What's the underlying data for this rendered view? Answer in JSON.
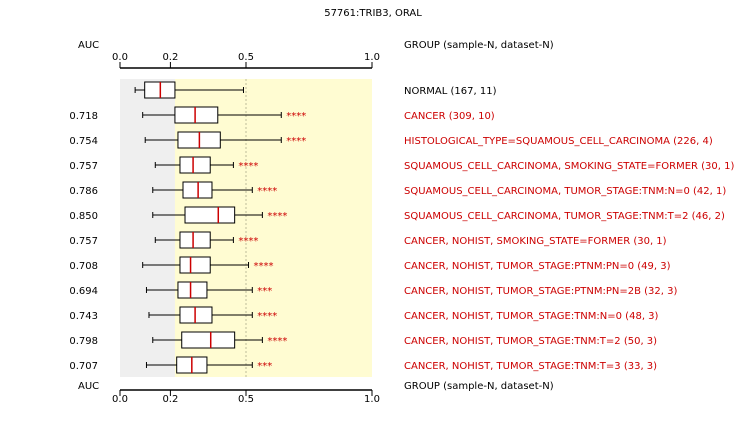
{
  "chart_data": {
    "type": "boxplot",
    "title": "57761:TRIB3, ORAL",
    "left_header": "AUC",
    "right_header": "GROUP (sample-N, dataset-N)",
    "ticks": [
      {
        "value": 0.0,
        "label": "0.0"
      },
      {
        "value": 0.2,
        "label": "0.2"
      },
      {
        "value": 0.5,
        "label": "0.5"
      },
      {
        "value": 1.0,
        "label": "1.0"
      }
    ],
    "xlim": [
      0.0,
      1.0
    ],
    "colors": {
      "normal_band": "#efefef",
      "high_band": "#fffcd2",
      "box": "#ffffff",
      "median": "#cc0000",
      "label_normal": "#000000",
      "label_case": "#cc0000"
    },
    "rows": [
      {
        "label": "NORMAL (167, 11)",
        "auc": "",
        "stars": "",
        "whisker_low": 0.06,
        "q1": 0.098,
        "median": 0.16,
        "q3": 0.218,
        "whisker_high": 0.49,
        "is_normal": true
      },
      {
        "label": "CANCER (309, 10)",
        "auc": "0.718",
        "stars": "****",
        "whisker_low": 0.09,
        "q1": 0.218,
        "median": 0.298,
        "q3": 0.388,
        "whisker_high": 0.64
      },
      {
        "label": "HISTOLOGICAL_TYPE=SQUAMOUS_CELL_CARCINOMA (226, 4)",
        "auc": "0.754",
        "stars": "****",
        "whisker_low": 0.1,
        "q1": 0.23,
        "median": 0.315,
        "q3": 0.398,
        "whisker_high": 0.64
      },
      {
        "label": "SQUAMOUS_CELL_CARCINOMA, SMOKING_STATE=FORMER (30, 1)",
        "auc": "0.757",
        "stars": "****",
        "whisker_low": 0.14,
        "q1": 0.238,
        "median": 0.29,
        "q3": 0.358,
        "whisker_high": 0.45
      },
      {
        "label": "SQUAMOUS_CELL_CARCINOMA, TUMOR_STAGE:TNM:N=0 (42, 1)",
        "auc": "0.786",
        "stars": "****",
        "whisker_low": 0.13,
        "q1": 0.25,
        "median": 0.31,
        "q3": 0.365,
        "whisker_high": 0.525
      },
      {
        "label": "SQUAMOUS_CELL_CARCINOMA, TUMOR_STAGE:TNM:T=2 (46, 2)",
        "auc": "0.850",
        "stars": "****",
        "whisker_low": 0.13,
        "q1": 0.258,
        "median": 0.39,
        "q3": 0.455,
        "whisker_high": 0.565
      },
      {
        "label": "CANCER, NOHIST, SMOKING_STATE=FORMER (30, 1)",
        "auc": "0.757",
        "stars": "****",
        "whisker_low": 0.14,
        "q1": 0.238,
        "median": 0.29,
        "q3": 0.358,
        "whisker_high": 0.45
      },
      {
        "label": "CANCER, NOHIST, TUMOR_STAGE:PTNM:PN=0 (49, 3)",
        "auc": "0.708",
        "stars": "****",
        "whisker_low": 0.09,
        "q1": 0.238,
        "median": 0.28,
        "q3": 0.358,
        "whisker_high": 0.51
      },
      {
        "label": "CANCER, NOHIST, TUMOR_STAGE:PTNM:PN=2B (32, 3)",
        "auc": "0.694",
        "stars": "***",
        "whisker_low": 0.105,
        "q1": 0.23,
        "median": 0.28,
        "q3": 0.345,
        "whisker_high": 0.525
      },
      {
        "label": "CANCER, NOHIST, TUMOR_STAGE:TNM:N=0 (48, 3)",
        "auc": "0.743",
        "stars": "****",
        "whisker_low": 0.115,
        "q1": 0.238,
        "median": 0.298,
        "q3": 0.365,
        "whisker_high": 0.525
      },
      {
        "label": "CANCER, NOHIST, TUMOR_STAGE:TNM:T=2 (50, 3)",
        "auc": "0.798",
        "stars": "****",
        "whisker_low": 0.13,
        "q1": 0.245,
        "median": 0.36,
        "q3": 0.455,
        "whisker_high": 0.565
      },
      {
        "label": "CANCER, NOHIST, TUMOR_STAGE:TNM:T=3 (33, 3)",
        "auc": "0.707",
        "stars": "***",
        "whisker_low": 0.105,
        "q1": 0.225,
        "median": 0.285,
        "q3": 0.345,
        "whisker_high": 0.525
      }
    ]
  }
}
